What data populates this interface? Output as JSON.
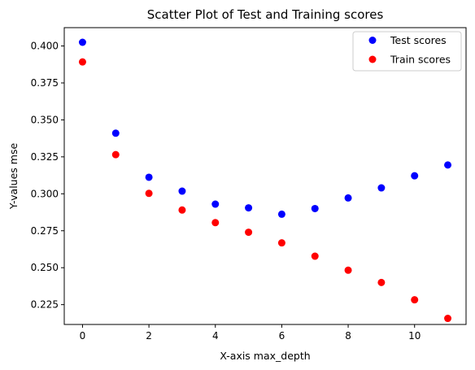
{
  "chart_data": {
    "type": "scatter",
    "title": "Scatter Plot of Test and Training scores",
    "xlabel": "X-axis max_depth",
    "ylabel": "Y-values mse",
    "xlim": [
      -0.55,
      11.55
    ],
    "ylim": [
      0.2116,
      0.4124
    ],
    "x_ticks": [
      0,
      2,
      4,
      6,
      8,
      10
    ],
    "x_tick_labels": [
      "0",
      "2",
      "4",
      "6",
      "8",
      "10"
    ],
    "y_ticks": [
      0.225,
      0.25,
      0.275,
      0.3,
      0.325,
      0.35,
      0.375,
      0.4
    ],
    "y_tick_labels": [
      "0.225",
      "0.250",
      "0.275",
      "0.300",
      "0.325",
      "0.350",
      "0.375",
      "0.400"
    ],
    "grid": false,
    "legend_position": "top-right",
    "series": [
      {
        "name": "Test scores",
        "color": "#0000ff",
        "x": [
          0,
          1,
          2,
          3,
          4,
          5,
          6,
          7,
          8,
          9,
          10,
          11
        ],
        "y": [
          0.4025,
          0.341,
          0.3112,
          0.3018,
          0.293,
          0.2905,
          0.2862,
          0.29,
          0.2972,
          0.304,
          0.3122,
          0.3195
        ]
      },
      {
        "name": "Train scores",
        "color": "#ff0000",
        "x": [
          0,
          1,
          2,
          3,
          4,
          5,
          6,
          7,
          8,
          9,
          10,
          11
        ],
        "y": [
          0.3892,
          0.3265,
          0.3003,
          0.289,
          0.2805,
          0.274,
          0.2668,
          0.2578,
          0.2483,
          0.24,
          0.2283,
          0.2157
        ]
      }
    ]
  }
}
